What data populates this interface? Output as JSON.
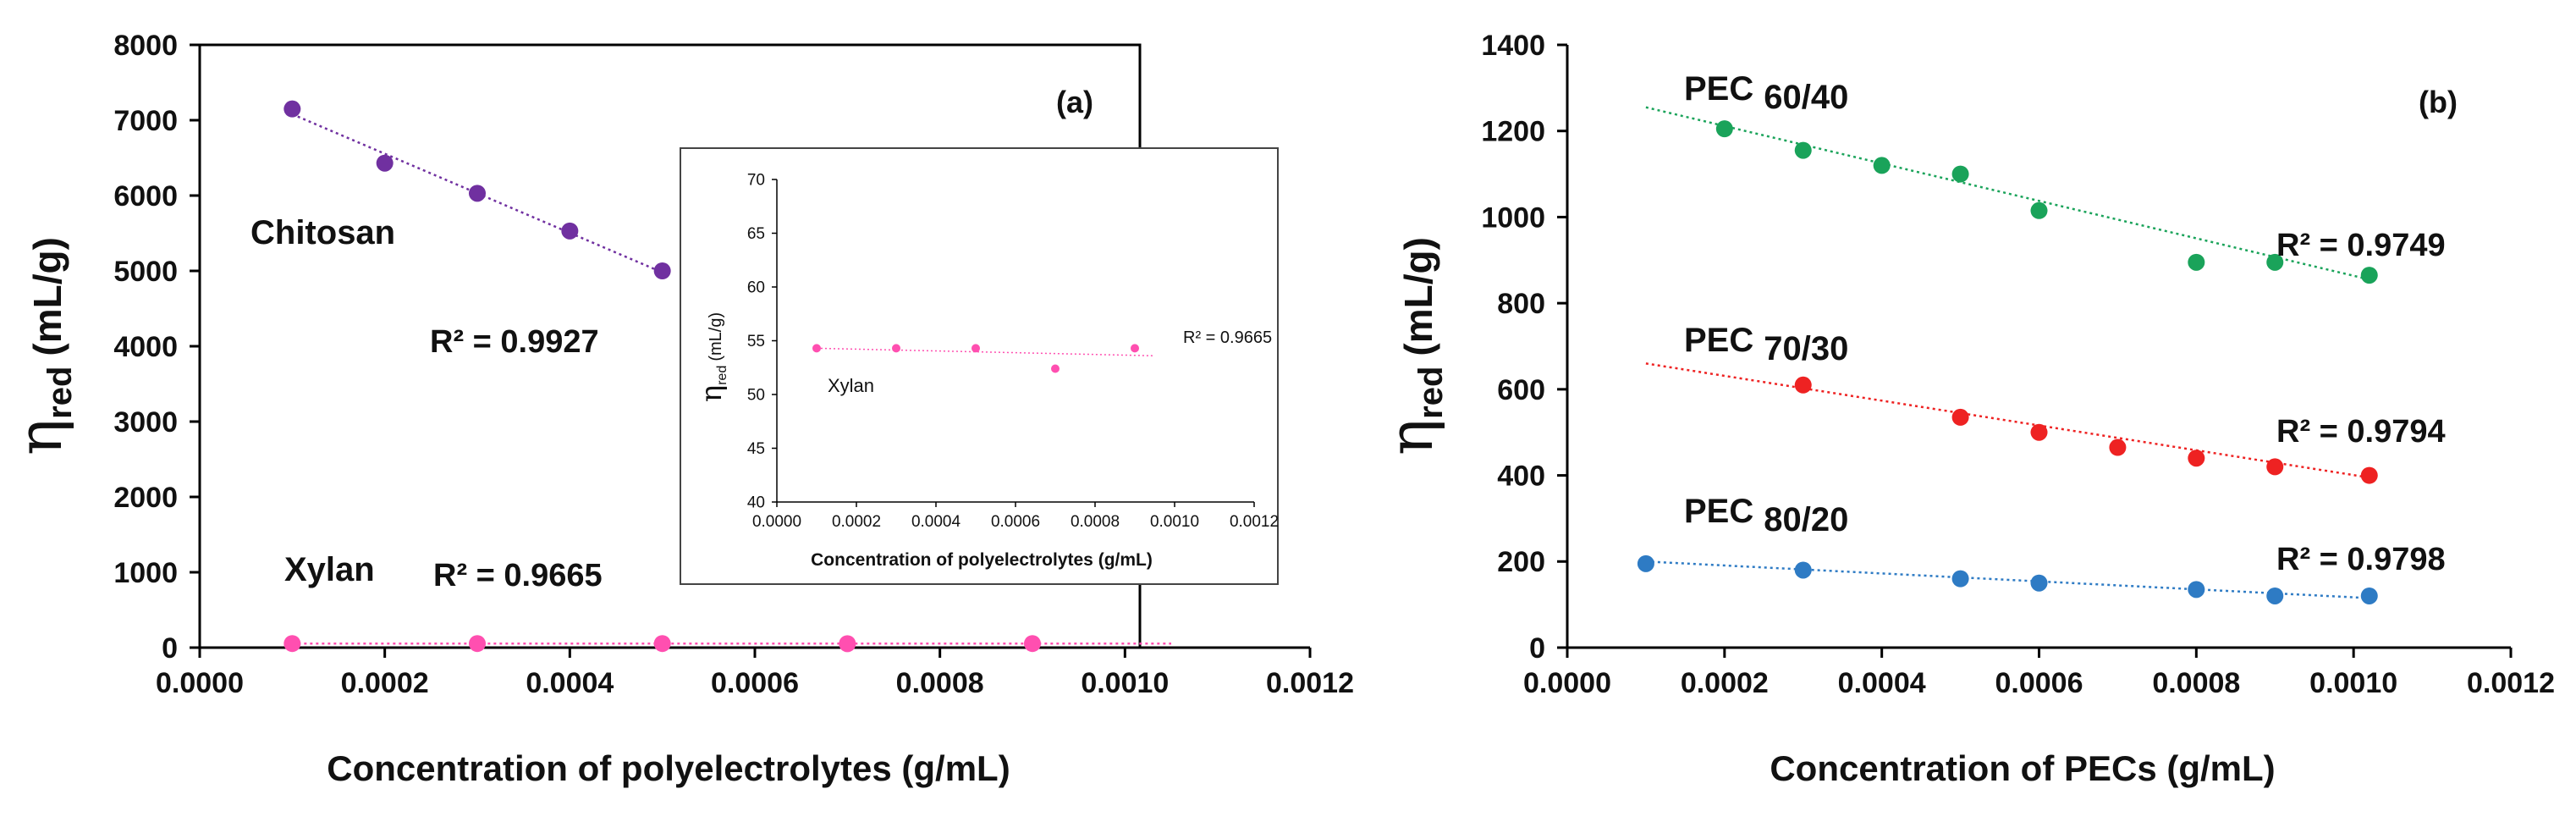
{
  "colors": {
    "chitosan": "#7030a0",
    "xylan": "#ff4fb0",
    "pec_60_40": "#1aa35a",
    "pec_70_30": "#ee2222",
    "pec_80_20": "#2e7bc4",
    "axis": "#000000"
  },
  "chart_data": [
    {
      "id": "panel_a",
      "type": "scatter",
      "panel_label": "(a)",
      "title": "",
      "xlabel": "Concentration of polyelectrolytes (g/mL)",
      "ylabel_symbol": "η",
      "ylabel_sub": "red",
      "ylabel_unit": "(mL/g)",
      "xlim": [
        0,
        0.0012
      ],
      "ylim": [
        0,
        8000
      ],
      "xticks": [
        "0.0000",
        "0.0002",
        "0.0004",
        "0.0006",
        "0.0008",
        "0.0010",
        "0.0012"
      ],
      "yticks": [
        "0",
        "1000",
        "2000",
        "3000",
        "4000",
        "5000",
        "6000",
        "7000",
        "8000"
      ],
      "series": [
        {
          "name": "Chitosan",
          "color": "chitosan",
          "x": [
            0.0001,
            0.0002,
            0.0003,
            0.0004,
            0.0005
          ],
          "y": [
            7150,
            6430,
            6030,
            5530,
            5000
          ],
          "trendline": {
            "x": [
              0.0001,
              0.0005
            ],
            "y": [
              7080,
              4980
            ]
          },
          "r2": "R² = 0.9927"
        },
        {
          "name": "Xylan",
          "color": "xylan",
          "x": [
            0.0001,
            0.0003,
            0.0005,
            0.0007,
            0.0009
          ],
          "y": [
            54,
            54,
            54,
            52,
            54
          ],
          "trendline": {
            "x": [
              0.0001,
              0.00105
            ],
            "y": [
              54,
              53.6
            ]
          },
          "r2": "R² = 0.9665"
        }
      ],
      "inset": {
        "type": "scatter",
        "xlabel": "Concentration of polyelectrolytes (g/mL)",
        "ylabel_symbol": "η",
        "ylabel_sub": "red",
        "ylabel_unit": "(mL/g)",
        "xlim": [
          0,
          0.0012
        ],
        "ylim": [
          40,
          70
        ],
        "xticks": [
          "0.0000",
          "0.0002",
          "0.0004",
          "0.0006",
          "0.0008",
          "0.0010",
          "0.0012"
        ],
        "yticks": [
          "40",
          "45",
          "50",
          "55",
          "60",
          "65",
          "70"
        ],
        "series": [
          {
            "name": "Xylan",
            "color": "xylan",
            "x": [
              0.0001,
              0.0003,
              0.0005,
              0.0007,
              0.0009
            ],
            "y": [
              54.3,
              54.3,
              54.3,
              52.4,
              54.3
            ],
            "trendline": {
              "x": [
                0.0001,
                0.00095
              ],
              "y": [
                54.3,
                53.6
              ]
            },
            "r2": "R² = 0.9665"
          }
        ]
      }
    },
    {
      "id": "panel_b",
      "type": "scatter",
      "panel_label": "(b)",
      "title": "",
      "xlabel": "Concentration of PECs (g/mL)",
      "ylabel_symbol": "η",
      "ylabel_sub": "red",
      "ylabel_unit": "(mL/g)",
      "xlim": [
        0,
        0.0012
      ],
      "ylim": [
        0,
        1400
      ],
      "xticks": [
        "0.0000",
        "0.0002",
        "0.0004",
        "0.0006",
        "0.0008",
        "0.0010",
        "0.0012"
      ],
      "yticks": [
        "0",
        "200",
        "400",
        "600",
        "800",
        "1000",
        "1200",
        "1400"
      ],
      "series": [
        {
          "name": "PEC",
          "sub": "60/40",
          "color": "pec_60_40",
          "x": [
            0.0002,
            0.0003,
            0.0004,
            0.0005,
            0.0006,
            0.0008,
            0.0009,
            0.00102
          ],
          "y": [
            1205,
            1155,
            1120,
            1100,
            1015,
            895,
            895,
            865
          ],
          "trendline": {
            "x": [
              0.0001,
              0.00102
            ],
            "y": [
              1255,
              855
            ]
          },
          "r2": "R² = 0.9749"
        },
        {
          "name": "PEC",
          "sub": "70/30",
          "color": "pec_70_30",
          "x": [
            0.0003,
            0.0005,
            0.0006,
            0.0007,
            0.0008,
            0.0009,
            0.00102
          ],
          "y": [
            610,
            535,
            500,
            465,
            440,
            420,
            400
          ],
          "trendline": {
            "x": [
              0.0001,
              0.00102
            ],
            "y": [
              660,
              395
            ]
          },
          "r2": "R² = 0.9794"
        },
        {
          "name": "PEC",
          "sub": "80/20",
          "color": "pec_80_20",
          "x": [
            0.0001,
            0.0003,
            0.0005,
            0.0006,
            0.0008,
            0.0009,
            0.00102
          ],
          "y": [
            195,
            180,
            160,
            150,
            135,
            120,
            120
          ],
          "trendline": {
            "x": [
              0.0001,
              0.00102
            ],
            "y": [
              200,
              115
            ]
          },
          "r2": "R² = 0.9798"
        }
      ]
    }
  ]
}
